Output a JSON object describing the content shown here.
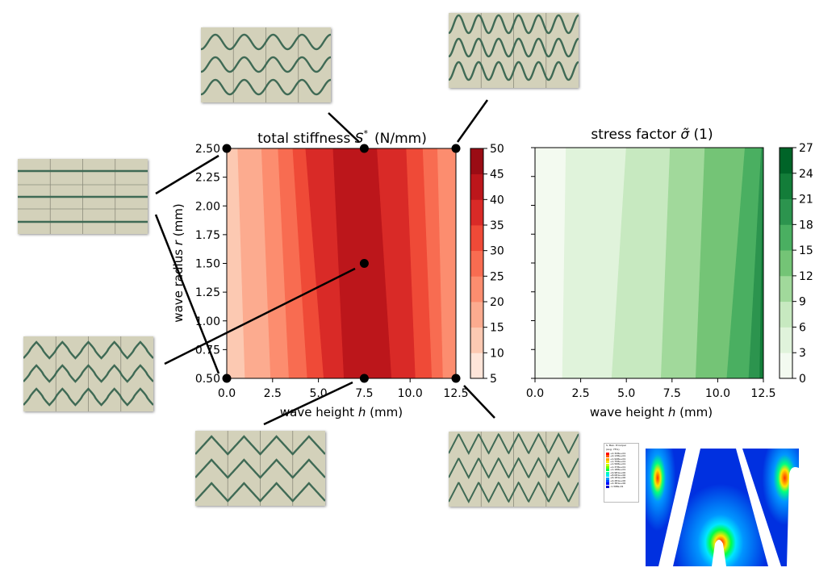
{
  "chart_data": [
    {
      "type": "contour",
      "title": "total stiffness",
      "title_symbol": "S",
      "title_superscript": "*",
      "title_unit": "(N/mm)",
      "xlabel": "wave height",
      "xlabel_var": "h",
      "xlabel_unit": "(mm)",
      "ylabel": "wave radius",
      "ylabel_var": "r",
      "ylabel_unit": "(mm)",
      "xlim": [
        0,
        12.5
      ],
      "ylim": [
        0.5,
        2.5
      ],
      "xticks": [
        "0.0",
        "2.5",
        "5.0",
        "7.5",
        "10.0",
        "12.5"
      ],
      "yticks": [
        "0.50",
        "0.75",
        "1.00",
        "1.25",
        "1.50",
        "1.75",
        "2.00",
        "2.25",
        "2.50"
      ],
      "colorbar_ticks": [
        "5",
        "10",
        "15",
        "20",
        "25",
        "30",
        "35",
        "40",
        "45",
        "50"
      ],
      "colormap": "Reds",
      "levels": [
        5,
        10,
        15,
        20,
        25,
        30,
        35,
        40,
        45,
        50
      ],
      "level_colors": [
        "#fee5d9",
        "#fcc9b2",
        "#fcab8f",
        "#fc8d6f",
        "#f86c51",
        "#ef4a37",
        "#d92a27",
        "#bc161b",
        "#9a0c14"
      ],
      "bands_x_at_bottom": [
        1.0,
        2.4,
        3.4,
        4.4,
        5.3,
        6.4,
        9.0,
        10.3,
        11.2,
        11.8
      ],
      "bands_x_at_top": [
        0.6,
        1.9,
        2.8,
        3.6,
        4.3,
        5.8,
        8.2,
        9.8,
        10.7,
        11.5
      ],
      "band_levels": [
        1,
        2,
        3,
        4,
        5,
        6,
        7,
        6,
        5,
        4,
        3
      ],
      "sample_points": [
        {
          "x": 0.0,
          "y": 2.5
        },
        {
          "x": 7.5,
          "y": 2.5
        },
        {
          "x": 12.5,
          "y": 2.5
        },
        {
          "x": 7.5,
          "y": 1.5
        },
        {
          "x": 0.0,
          "y": 0.5
        },
        {
          "x": 7.5,
          "y": 0.5
        },
        {
          "x": 12.5,
          "y": 0.5
        }
      ]
    },
    {
      "type": "contour",
      "title": "stress factor",
      "title_symbol": "σ̃",
      "title_unit": "(1)",
      "xlabel": "wave height",
      "xlabel_var": "h",
      "xlabel_unit": "(mm)",
      "xlim": [
        0,
        12.5
      ],
      "ylim": [
        0.5,
        2.5
      ],
      "xticks": [
        "0.0",
        "2.5",
        "5.0",
        "7.5",
        "10.0",
        "12.5"
      ],
      "colorbar_ticks": [
        "0",
        "3",
        "6",
        "9",
        "12",
        "15",
        "18",
        "21",
        "24",
        "27"
      ],
      "colormap": "Greens",
      "levels": [
        0,
        3,
        6,
        9,
        12,
        15,
        18,
        21,
        24,
        27
      ],
      "level_colors": [
        "#f3faf0",
        "#e0f3db",
        "#c7e9c0",
        "#a1d99b",
        "#74c476",
        "#4aaf61",
        "#2c944e",
        "#137d39",
        "#006428"
      ],
      "bands_x_at_bottom": [
        1.5,
        4.2,
        6.9,
        8.8,
        10.5,
        11.7,
        12.3
      ],
      "bands_x_at_top": [
        1.7,
        5.0,
        7.4,
        9.3,
        11.5,
        12.4,
        12.5
      ],
      "band_levels": [
        0,
        1,
        2,
        3,
        4,
        5,
        6,
        7
      ]
    }
  ],
  "fea_legend": {
    "title": "S, Max. Principal",
    "subtitle": "(Avg: 75%)",
    "values": [
      "+2.328e+01",
      "+2.138e+01",
      "+1.948e+01",
      "+1.758e+01",
      "+1.568e+01",
      "+1.378e+01",
      "+1.188e+01",
      "+9.981e+00",
      "+8.081e+00",
      "+6.181e+00",
      "+4.281e+00",
      "+2.381e+00",
      "-1.398e-01"
    ],
    "colors": [
      "#ff0000",
      "#ff5a00",
      "#ffa500",
      "#ffe600",
      "#c8ff00",
      "#64ff00",
      "#00ff46",
      "#00ffb4",
      "#00e6ff",
      "#0096ff",
      "#0046ff",
      "#0000ff",
      "#0000c8"
    ]
  },
  "thumbnails": [
    {
      "name": "thumbnail-top-left",
      "pattern": "sine"
    },
    {
      "name": "thumbnail-top-right",
      "pattern": "tall-sine"
    },
    {
      "name": "thumbnail-left-straight",
      "pattern": "straight"
    },
    {
      "name": "thumbnail-left-lower",
      "pattern": "rounded-triangle"
    },
    {
      "name": "thumbnail-bottom-center",
      "pattern": "triangle"
    },
    {
      "name": "thumbnail-bottom-right",
      "pattern": "tall-triangle"
    }
  ]
}
